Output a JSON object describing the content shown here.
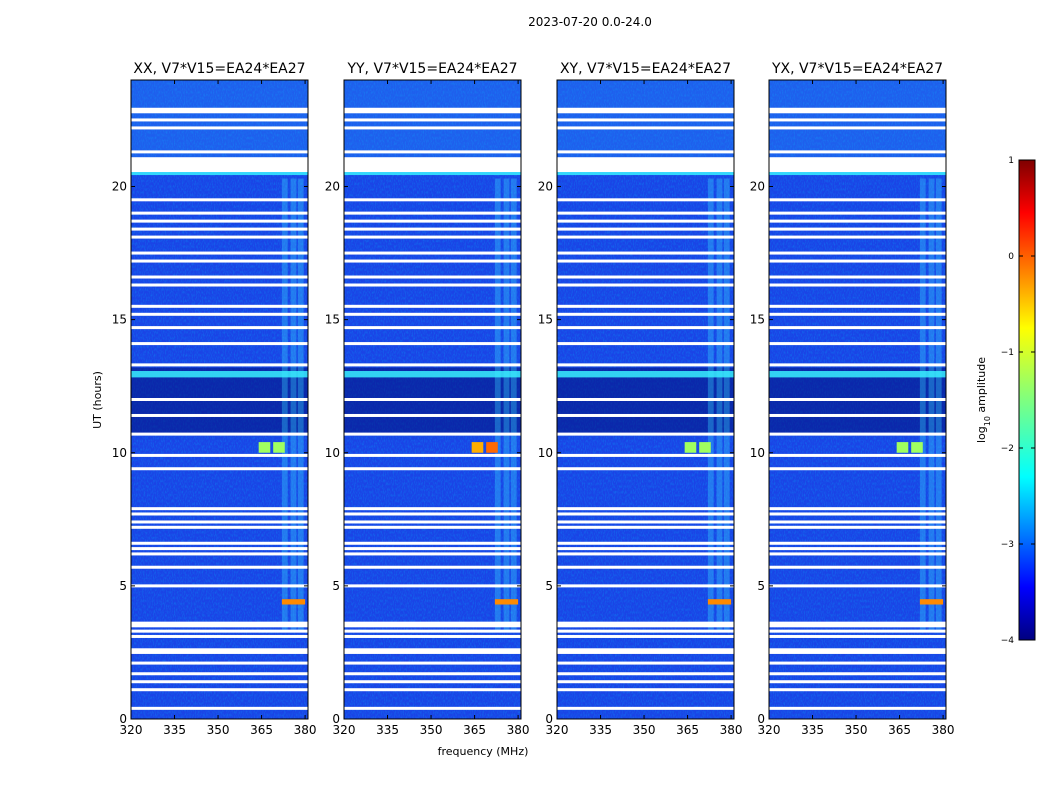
{
  "chart_data": {
    "type": "heatmap",
    "suptitle": "2023-07-20 0.0-24.0",
    "xlabel": "frequency (MHz)",
    "ylabel": "UT (hours)",
    "xlim": [
      320,
      381
    ],
    "ylim": [
      0,
      24
    ],
    "xticks": [
      "320",
      "335",
      "350",
      "365",
      "380"
    ],
    "xtick_values": [
      320,
      335,
      350,
      365,
      380
    ],
    "yticks": [
      "0",
      "5",
      "10",
      "15",
      "20"
    ],
    "ytick_values": [
      0,
      5,
      10,
      15,
      20
    ],
    "panels": [
      {
        "title": "XX, V7*V15=EA24*EA27",
        "brightband_hours": [
          10.0,
          10.4
        ],
        "hot_band_hours": [
          4.3,
          4.5
        ]
      },
      {
        "title": "YY, V7*V15=EA24*EA27",
        "brightband_hours": [
          10.0,
          10.4
        ],
        "hot_band_hours": [
          4.3,
          4.5
        ]
      },
      {
        "title": "XY, V7*V15=EA24*EA27",
        "brightband_hours": [
          10.0,
          10.4
        ],
        "hot_band_hours": [
          4.3,
          4.5
        ]
      },
      {
        "title": "YX, V7*V15=EA24*EA27",
        "brightband_hours": [
          10.0,
          10.4
        ],
        "hot_band_hours": [
          4.3,
          4.5
        ]
      }
    ],
    "flagged_hours": [
      0.4,
      1.1,
      1.4,
      1.7,
      2.1,
      2.5,
      2.6,
      3.1,
      3.3,
      3.5,
      3.6,
      5.0,
      5.7,
      6.2,
      6.4,
      6.6,
      7.2,
      7.4,
      7.7,
      7.9,
      9.4,
      9.9,
      10.7,
      11.4,
      12.0,
      13.3,
      14.1,
      14.7,
      15.2,
      15.5,
      16.3,
      16.6,
      17.2,
      17.5,
      18.1,
      18.4,
      18.7,
      19.0,
      19.5,
      20.6,
      20.9,
      21.3,
      22.2,
      22.5,
      22.9
    ],
    "colorbar": {
      "label": "log",
      "label_sub": "10",
      "label_rest": " amplitude",
      "range": [
        -4,
        1
      ],
      "ticks": [
        "1",
        "0",
        "−1",
        "−2",
        "−3",
        "−4"
      ],
      "tick_values": [
        1,
        0,
        -1,
        -2,
        -3,
        -4
      ]
    }
  }
}
